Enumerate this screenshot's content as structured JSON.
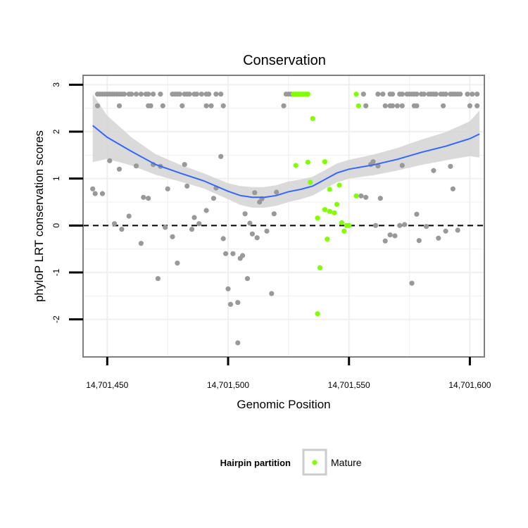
{
  "chart_data": {
    "type": "scatter",
    "title": "Conservation",
    "xlabel": "Genomic Position",
    "ylabel": "phyloP LRT conservation scores",
    "xlim": [
      14701440,
      14701606
    ],
    "ylim": [
      -2.8,
      3.2
    ],
    "x_ticks": [
      14701450,
      14701500,
      14701550,
      14701600
    ],
    "x_tick_labels": [
      "14,701,450",
      "14,701,500",
      "14,701,550",
      "14,701,600"
    ],
    "y_ticks": [
      -2,
      -1,
      0,
      1,
      2,
      3
    ],
    "y_tick_labels": [
      "-2",
      "-1",
      "0",
      "1",
      "2",
      "3"
    ],
    "reference_line_y": 0,
    "grid": true,
    "legend": {
      "title": "Hairpin partition",
      "position": "bottom",
      "entries": [
        {
          "label": "Mature",
          "color": "#7fff00"
        }
      ]
    },
    "colors": {
      "other": "#999999",
      "mature": "#7fff00",
      "smooth": "#3366ff",
      "band": "#d3d3d3"
    },
    "series": [
      {
        "name": "Other",
        "points": [
          [
            14701446,
            2.8
          ],
          [
            14701447,
            2.8
          ],
          [
            14701448,
            2.8
          ],
          [
            14701449,
            2.8
          ],
          [
            14701450,
            2.8
          ],
          [
            14701451,
            2.8
          ],
          [
            14701452,
            2.8
          ],
          [
            14701453,
            2.8
          ],
          [
            14701454,
            2.8
          ],
          [
            14701455,
            2.8
          ],
          [
            14701456,
            2.8
          ],
          [
            14701457,
            2.8
          ],
          [
            14701459,
            2.8
          ],
          [
            14701460,
            2.8
          ],
          [
            14701462,
            2.8
          ],
          [
            14701464,
            2.8
          ],
          [
            14701466,
            2.8
          ],
          [
            14701467,
            2.8
          ],
          [
            14701469,
            2.8
          ],
          [
            14701472,
            2.8
          ],
          [
            14701477,
            2.8
          ],
          [
            14701478,
            2.8
          ],
          [
            14701479,
            2.8
          ],
          [
            14701480,
            2.8
          ],
          [
            14701482,
            2.8
          ],
          [
            14701483,
            2.8
          ],
          [
            14701484,
            2.8
          ],
          [
            14701486,
            2.8
          ],
          [
            14701487,
            2.8
          ],
          [
            14701489,
            2.8
          ],
          [
            14701491,
            2.8
          ],
          [
            14701492,
            2.8
          ],
          [
            14701495,
            2.8
          ],
          [
            14701497,
            2.8
          ],
          [
            14701524,
            2.8
          ],
          [
            14701525,
            2.8
          ],
          [
            14701526,
            2.8
          ],
          [
            14701556,
            2.8
          ],
          [
            14701562,
            2.8
          ],
          [
            14701564,
            2.8
          ],
          [
            14701567,
            2.8
          ],
          [
            14701568,
            2.8
          ],
          [
            14701571,
            2.8
          ],
          [
            14701572,
            2.8
          ],
          [
            14701574,
            2.8
          ],
          [
            14701575,
            2.8
          ],
          [
            14701576,
            2.8
          ],
          [
            14701577,
            2.8
          ],
          [
            14701578,
            2.8
          ],
          [
            14701580,
            2.8
          ],
          [
            14701581,
            2.8
          ],
          [
            14701583,
            2.8
          ],
          [
            14701584,
            2.8
          ],
          [
            14701585,
            2.8
          ],
          [
            14701586,
            2.8
          ],
          [
            14701588,
            2.8
          ],
          [
            14701589,
            2.8
          ],
          [
            14701590,
            2.8
          ],
          [
            14701592,
            2.8
          ],
          [
            14701593,
            2.8
          ],
          [
            14701594,
            2.8
          ],
          [
            14701595,
            2.8
          ],
          [
            14701596,
            2.8
          ],
          [
            14701599,
            2.8
          ],
          [
            14701601,
            2.8
          ],
          [
            14701603,
            2.8
          ],
          [
            14701446,
            2.55
          ],
          [
            14701455,
            2.55
          ],
          [
            14701467,
            2.55
          ],
          [
            14701468,
            2.55
          ],
          [
            14701473,
            2.55
          ],
          [
            14701481,
            2.55
          ],
          [
            14701491,
            2.55
          ],
          [
            14701493,
            2.55
          ],
          [
            14701498,
            2.55
          ],
          [
            14701523,
            2.55
          ],
          [
            14701557,
            2.55
          ],
          [
            14701565,
            2.55
          ],
          [
            14701567,
            2.55
          ],
          [
            14701568,
            2.55
          ],
          [
            14701570,
            2.55
          ],
          [
            14701572,
            2.55
          ],
          [
            14701577,
            2.55
          ],
          [
            14701578,
            2.55
          ],
          [
            14701589,
            2.55
          ],
          [
            14701600,
            2.55
          ],
          [
            14701603,
            2.55
          ],
          [
            14701444,
            0.78
          ],
          [
            14701445,
            0.68
          ],
          [
            14701448,
            0.68
          ],
          [
            14701451,
            1.38
          ],
          [
            14701453,
            0.04
          ],
          [
            14701455,
            1.2
          ],
          [
            14701456,
            -0.08
          ],
          [
            14701459,
            0.2
          ],
          [
            14701462,
            1.27
          ],
          [
            14701464,
            -0.38
          ],
          [
            14701465,
            0.6
          ],
          [
            14701467,
            0.58
          ],
          [
            14701469,
            1.3
          ],
          [
            14701471,
            -1.13
          ],
          [
            14701472,
            1.26
          ],
          [
            14701474,
            -0.04
          ],
          [
            14701475,
            0.78
          ],
          [
            14701477,
            -0.24
          ],
          [
            14701479,
            -0.8
          ],
          [
            14701482,
            1.3
          ],
          [
            14701483,
            0.84
          ],
          [
            14701485,
            -0.08
          ],
          [
            14701486,
            0.17
          ],
          [
            14701488,
            0.04
          ],
          [
            14701491,
            0.32
          ],
          [
            14701494,
            0.58
          ],
          [
            14701495,
            0.8
          ],
          [
            14701497,
            1.47
          ],
          [
            14701498,
            -0.28
          ],
          [
            14701499,
            -0.6
          ],
          [
            14701500,
            -1.35
          ],
          [
            14701501,
            -1.68
          ],
          [
            14701502,
            -0.6
          ],
          [
            14701504,
            -2.5
          ],
          [
            14701504,
            -1.64
          ],
          [
            14701505,
            -0.7
          ],
          [
            14701506,
            -0.64
          ],
          [
            14701507,
            0.25
          ],
          [
            14701508,
            -1.13
          ],
          [
            14701509,
            0.05
          ],
          [
            14701510,
            -0.18
          ],
          [
            14701511,
            0.7
          ],
          [
            14701512,
            -0.26
          ],
          [
            14701513,
            0.5
          ],
          [
            14701514,
            0.57
          ],
          [
            14701516,
            -0.12
          ],
          [
            14701518,
            -1.45
          ],
          [
            14701519,
            0.25
          ],
          [
            14701520,
            0.71
          ],
          [
            14701555,
            0.63
          ],
          [
            14701557,
            0.6
          ],
          [
            14701559,
            1.3
          ],
          [
            14701560,
            1.36
          ],
          [
            14701561,
            0.0
          ],
          [
            14701562,
            1.27
          ],
          [
            14701563,
            0.58
          ],
          [
            14701565,
            -0.33
          ],
          [
            14701567,
            -0.2
          ],
          [
            14701569,
            -0.22
          ],
          [
            14701571,
            0.0
          ],
          [
            14701572,
            1.28
          ],
          [
            14701573,
            0.02
          ],
          [
            14701576,
            -1.23
          ],
          [
            14701578,
            0.24
          ],
          [
            14701579,
            -0.32
          ],
          [
            14701582,
            -0.02
          ],
          [
            14701585,
            1.17
          ],
          [
            14701587,
            -0.27
          ],
          [
            14701590,
            -0.12
          ],
          [
            14701592,
            1.26
          ],
          [
            14701593,
            0.78
          ],
          [
            14701595,
            -0.1
          ]
        ]
      },
      {
        "name": "Mature",
        "points": [
          [
            14701527,
            2.8
          ],
          [
            14701528,
            2.8
          ],
          [
            14701529,
            2.8
          ],
          [
            14701530,
            2.8
          ],
          [
            14701531,
            2.8
          ],
          [
            14701532,
            2.8
          ],
          [
            14701533,
            2.8
          ],
          [
            14701553,
            2.8
          ],
          [
            14701554,
            2.55
          ],
          [
            14701535,
            2.28
          ],
          [
            14701528,
            1.28
          ],
          [
            14701533,
            1.35
          ],
          [
            14701540,
            1.36
          ],
          [
            14701542,
            0.77
          ],
          [
            14701546,
            0.86
          ],
          [
            14701534,
            0.92
          ],
          [
            14701540,
            0.34
          ],
          [
            14701542,
            0.3
          ],
          [
            14701544,
            0.27
          ],
          [
            14701545,
            0.45
          ],
          [
            14701537,
            0.16
          ],
          [
            14701553,
            0.63
          ],
          [
            14701547,
            0.06
          ],
          [
            14701549,
            0.0
          ],
          [
            14701550,
            0.0
          ],
          [
            14701548,
            -0.12
          ],
          [
            14701541,
            -0.29
          ],
          [
            14701538,
            -0.9
          ],
          [
            14701537,
            -1.88
          ]
        ]
      }
    ],
    "smooth_fit": {
      "x": [
        14701444,
        14701450,
        14701460,
        14701470,
        14701480,
        14701490,
        14701500,
        14701505,
        14701510,
        14701515,
        14701520,
        14701525,
        14701530,
        14701535,
        14701540,
        14701545,
        14701550,
        14701560,
        14701570,
        14701580,
        14701590,
        14701600,
        14701604
      ],
      "y": [
        2.13,
        1.88,
        1.58,
        1.3,
        1.12,
        0.95,
        0.73,
        0.64,
        0.6,
        0.6,
        0.64,
        0.72,
        0.77,
        0.84,
        0.98,
        1.12,
        1.2,
        1.29,
        1.41,
        1.56,
        1.69,
        1.85,
        1.95
      ],
      "ci_lower": [
        1.35,
        1.42,
        1.28,
        1.08,
        0.94,
        0.79,
        0.56,
        0.44,
        0.38,
        0.38,
        0.42,
        0.5,
        0.56,
        0.64,
        0.78,
        0.92,
        1.0,
        1.07,
        1.17,
        1.29,
        1.39,
        1.48,
        1.45
      ],
      "ci_upper": [
        2.8,
        2.34,
        1.88,
        1.52,
        1.3,
        1.11,
        0.9,
        0.84,
        0.82,
        0.82,
        0.86,
        0.94,
        0.98,
        1.04,
        1.18,
        1.32,
        1.4,
        1.51,
        1.65,
        1.83,
        1.99,
        2.22,
        2.45
      ]
    }
  }
}
